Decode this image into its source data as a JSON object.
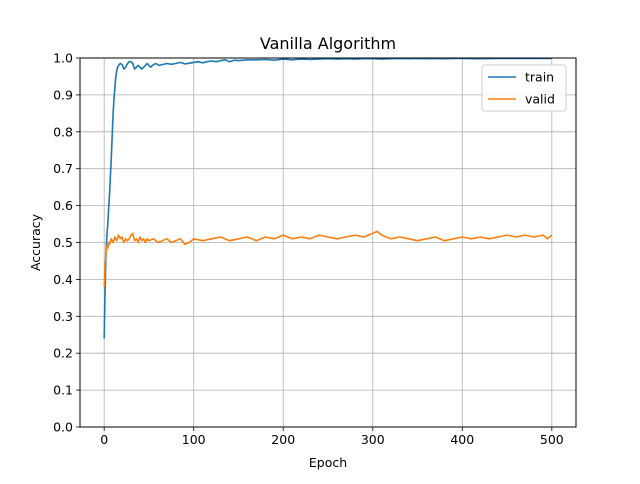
{
  "chart_data": {
    "type": "line",
    "title": "Vanilla Algorithm",
    "xlabel": "Epoch",
    "ylabel": "Accuracy",
    "xlim": [
      -27,
      527
    ],
    "ylim": [
      0.0,
      1.0
    ],
    "xticks": [
      0,
      100,
      200,
      300,
      400,
      500
    ],
    "xtick_labels": [
      "0",
      "100",
      "200",
      "300",
      "400",
      "500"
    ],
    "yticks": [
      0.0,
      0.1,
      0.2,
      0.3,
      0.4,
      0.5,
      0.6,
      0.7,
      0.8,
      0.9,
      1.0
    ],
    "ytick_labels": [
      "0.0",
      "0.1",
      "0.2",
      "0.3",
      "0.4",
      "0.5",
      "0.6",
      "0.7",
      "0.8",
      "0.9",
      "1.0"
    ],
    "grid": true,
    "legend_position": "top-right",
    "series": [
      {
        "name": "train",
        "color": "#1f77b4",
        "x": [
          0,
          1,
          2,
          3,
          4,
          5,
          6,
          7,
          8,
          9,
          10,
          11,
          12,
          13,
          14,
          15,
          16,
          18,
          20,
          22,
          24,
          26,
          28,
          30,
          32,
          34,
          36,
          38,
          40,
          42,
          44,
          46,
          48,
          50,
          52,
          55,
          58,
          61,
          65,
          70,
          75,
          80,
          85,
          90,
          95,
          100,
          105,
          110,
          115,
          120,
          125,
          130,
          135,
          140,
          145,
          150,
          160,
          170,
          180,
          190,
          200,
          210,
          220,
          230,
          240,
          250,
          260,
          270,
          280,
          290,
          300,
          310,
          320,
          330,
          340,
          350,
          360,
          370,
          380,
          390,
          400,
          420,
          440,
          460,
          480,
          500
        ],
        "y": [
          0.24,
          0.38,
          0.47,
          0.52,
          0.55,
          0.59,
          0.63,
          0.68,
          0.73,
          0.79,
          0.85,
          0.89,
          0.92,
          0.95,
          0.965,
          0.975,
          0.98,
          0.985,
          0.982,
          0.97,
          0.975,
          0.985,
          0.99,
          0.99,
          0.985,
          0.97,
          0.975,
          0.98,
          0.975,
          0.97,
          0.975,
          0.98,
          0.985,
          0.98,
          0.975,
          0.982,
          0.985,
          0.98,
          0.982,
          0.985,
          0.983,
          0.985,
          0.988,
          0.984,
          0.986,
          0.988,
          0.99,
          0.987,
          0.99,
          0.992,
          0.99,
          0.993,
          0.995,
          0.99,
          0.994,
          0.993,
          0.995,
          0.995,
          0.996,
          0.994,
          0.997,
          0.995,
          0.997,
          0.996,
          0.997,
          0.998,
          0.997,
          0.998,
          0.997,
          0.998,
          0.998,
          0.997,
          0.998,
          0.999,
          0.998,
          0.999,
          0.998,
          0.999,
          0.998,
          0.999,
          0.999,
          0.998,
          0.999,
          0.999,
          0.999,
          0.999
        ]
      },
      {
        "name": "valid",
        "color": "#ff7f0e",
        "x": [
          0,
          1,
          2,
          3,
          4,
          5,
          6,
          8,
          10,
          12,
          14,
          16,
          18,
          20,
          22,
          24,
          26,
          28,
          30,
          32,
          34,
          36,
          38,
          40,
          42,
          44,
          46,
          48,
          50,
          55,
          60,
          65,
          70,
          75,
          80,
          85,
          90,
          95,
          100,
          110,
          120,
          130,
          140,
          150,
          160,
          170,
          180,
          190,
          200,
          210,
          220,
          230,
          240,
          250,
          260,
          270,
          280,
          290,
          300,
          305,
          310,
          320,
          330,
          340,
          350,
          360,
          370,
          380,
          390,
          400,
          410,
          420,
          430,
          440,
          450,
          460,
          470,
          480,
          490,
          495,
          500
        ],
        "y": [
          0.38,
          0.44,
          0.47,
          0.49,
          0.485,
          0.5,
          0.495,
          0.51,
          0.5,
          0.515,
          0.505,
          0.52,
          0.51,
          0.515,
          0.5,
          0.51,
          0.505,
          0.51,
          0.52,
          0.525,
          0.505,
          0.51,
          0.5,
          0.515,
          0.505,
          0.51,
          0.5,
          0.51,
          0.505,
          0.51,
          0.5,
          0.505,
          0.51,
          0.5,
          0.505,
          0.51,
          0.495,
          0.5,
          0.51,
          0.505,
          0.51,
          0.515,
          0.505,
          0.51,
          0.515,
          0.505,
          0.515,
          0.51,
          0.52,
          0.51,
          0.515,
          0.51,
          0.52,
          0.515,
          0.51,
          0.515,
          0.52,
          0.515,
          0.525,
          0.53,
          0.52,
          0.51,
          0.515,
          0.51,
          0.505,
          0.51,
          0.515,
          0.505,
          0.51,
          0.515,
          0.51,
          0.515,
          0.51,
          0.515,
          0.52,
          0.515,
          0.52,
          0.515,
          0.52,
          0.51,
          0.52
        ]
      }
    ]
  }
}
